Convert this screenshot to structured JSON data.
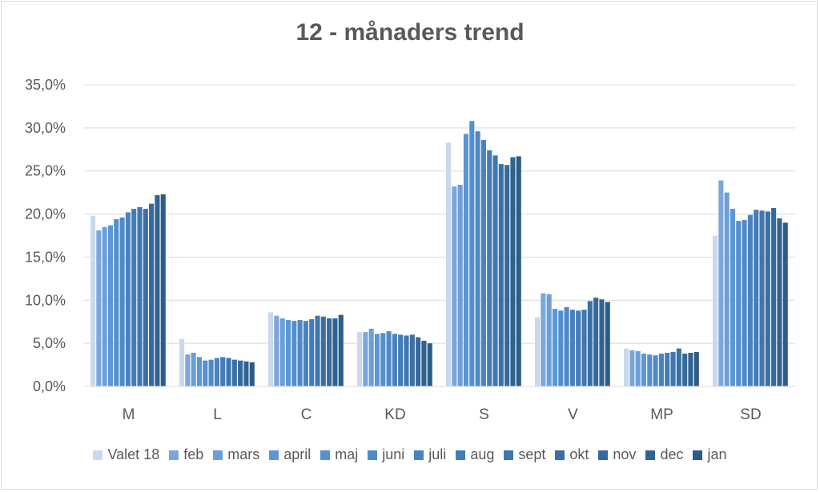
{
  "chart_data": {
    "type": "bar",
    "title": "12 - månaders trend",
    "xlabel": "",
    "ylabel": "",
    "ylim": [
      0,
      35
    ],
    "yticks": [
      "0,0%",
      "5,0%",
      "10,0%",
      "15,0%",
      "20,0%",
      "25,0%",
      "30,0%",
      "35,0%"
    ],
    "grid": true,
    "legend_position": "bottom",
    "categories": [
      "M",
      "L",
      "C",
      "KD",
      "S",
      "V",
      "MP",
      "SD"
    ],
    "series": [
      {
        "name": "Valet 18",
        "color": "#c9d9ed",
        "values": [
          19.8,
          5.5,
          8.6,
          6.3,
          28.3,
          8.0,
          4.4,
          17.5
        ]
      },
      {
        "name": "feb",
        "color": "#7aa6dc",
        "values": [
          18.1,
          3.7,
          8.2,
          6.3,
          23.2,
          10.8,
          4.2,
          23.9
        ]
      },
      {
        "name": "mars",
        "color": "#6b9fd8",
        "values": [
          18.5,
          3.9,
          7.9,
          6.7,
          23.4,
          10.7,
          4.1,
          22.5
        ]
      },
      {
        "name": "april",
        "color": "#5b97d4",
        "values": [
          18.7,
          3.4,
          7.7,
          6.1,
          29.3,
          9.0,
          3.8,
          20.6
        ]
      },
      {
        "name": "maj",
        "color": "#5590cd",
        "values": [
          19.4,
          3.0,
          7.6,
          6.2,
          30.8,
          8.8,
          3.7,
          19.2
        ]
      },
      {
        "name": "juni",
        "color": "#4f8ac6",
        "values": [
          19.6,
          3.1,
          7.7,
          6.4,
          29.6,
          9.2,
          3.6,
          19.3
        ]
      },
      {
        "name": "juli",
        "color": "#4983bf",
        "values": [
          20.2,
          3.3,
          7.6,
          6.1,
          28.6,
          8.9,
          3.8,
          19.9
        ]
      },
      {
        "name": "aug",
        "color": "#437db7",
        "values": [
          20.6,
          3.4,
          7.8,
          6.0,
          27.4,
          8.8,
          3.9,
          20.5
        ]
      },
      {
        "name": "sept",
        "color": "#3f77ae",
        "values": [
          20.8,
          3.3,
          8.2,
          5.9,
          26.8,
          8.9,
          4.0,
          20.4
        ]
      },
      {
        "name": "okt",
        "color": "#3a70a5",
        "values": [
          20.6,
          3.1,
          8.1,
          6.0,
          25.8,
          9.9,
          4.4,
          20.3
        ]
      },
      {
        "name": "nov",
        "color": "#366a9c",
        "values": [
          21.2,
          3.0,
          7.9,
          5.7,
          25.7,
          10.3,
          3.8,
          20.7
        ]
      },
      {
        "name": "dec",
        "color": "#316391",
        "values": [
          22.2,
          2.9,
          7.9,
          5.3,
          26.6,
          10.1,
          3.9,
          19.5
        ]
      },
      {
        "name": "jan",
        "color": "#2c5c87",
        "values": [
          22.3,
          2.8,
          8.3,
          5.0,
          26.7,
          9.8,
          4.0,
          19.0
        ]
      }
    ]
  }
}
